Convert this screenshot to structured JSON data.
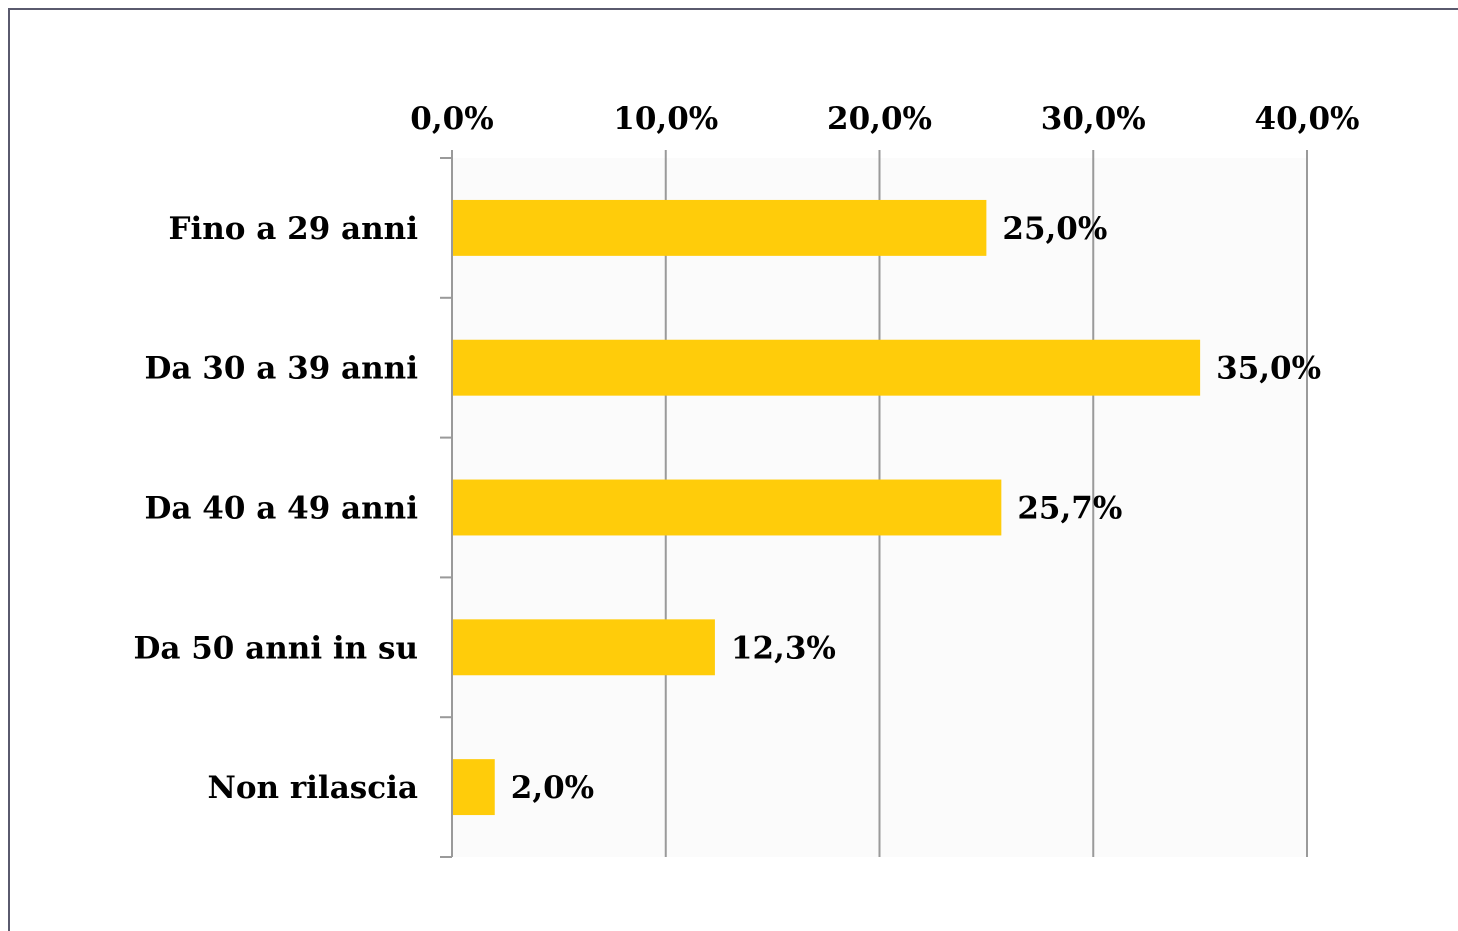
{
  "chart_data": {
    "type": "bar",
    "orientation": "horizontal",
    "categories": [
      "Fino a 29 anni",
      "Da 30 a 39 anni",
      "Da 40 a 49 anni",
      "Da 50 anni in su",
      "Non rilascia"
    ],
    "values": [
      25.0,
      35.0,
      25.7,
      12.3,
      2.0
    ],
    "value_labels": [
      "25,0%",
      "35,0%",
      "25,7%",
      "12,3%",
      "2,0%"
    ],
    "xlim": [
      0,
      40
    ],
    "x_ticks": [
      0,
      10,
      20,
      30,
      40
    ],
    "x_tick_labels": [
      "0,0%",
      "10,0%",
      "20,0%",
      "30,0%",
      "40,0%"
    ],
    "x_axis_position": "top",
    "grid": "vertical",
    "legend": "none",
    "title": "",
    "xlabel": "",
    "ylabel": "",
    "colors": {
      "bar": "#FFCC0A",
      "grid": "#9a9a9a",
      "plot_background": "#fbfbfb",
      "frame": "#5a5a6e"
    }
  }
}
